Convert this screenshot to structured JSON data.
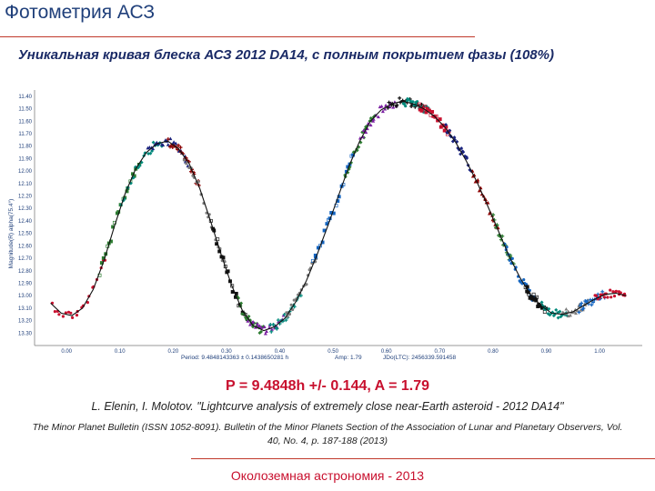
{
  "slide": {
    "title": "Фотометрия АСЗ",
    "subtitle": "Уникальная кривая блеска АСЗ 2012 DA14, с полным покрытием фазы (108%)",
    "result_formula": "P = 9.4848h +/- 0.144, A = 1.79",
    "citation": "L. Elenin, I. Molotov. \"Lightcurve analysis of extremely close near-Earth asteroid - 2012 DA14\"",
    "journal": "The Minor Planet Bulletin (ISSN 1052-8091). Bulletin of the Minor Planets Section of the Association of Lunar and Planetary Observers, Vol. 40, No. 4, p. 187-188 (2013)",
    "footer": "Околоземная астрономия - 2013"
  },
  "colors": {
    "title": "#1f3f7a",
    "subtitle": "#1a2a66",
    "accent_red": "#c8102e",
    "rule": "#c0392b",
    "curve": "#111111",
    "axis_text": "#1f3f7a"
  },
  "chart_data": {
    "type": "scatter",
    "ylabel": "Magnitude(R) alpha(75.4°)",
    "x_ticks": [
      "0.00",
      "0.10",
      "0.20",
      "0.30",
      "0.40",
      "0.50",
      "0.60",
      "0.70",
      "0.80",
      "0.90",
      "1.00"
    ],
    "y_ticks": [
      "11.40",
      "11.50",
      "11.60",
      "11.70",
      "11.80",
      "11.90",
      "12.00",
      "12.10",
      "12.20",
      "12.30",
      "12.40",
      "12.50",
      "12.60",
      "12.70",
      "12.80",
      "12.90",
      "13.00",
      "13.10",
      "13.20",
      "13.30"
    ],
    "xlim": [
      -0.06,
      1.08
    ],
    "ylim": [
      13.4,
      11.35
    ],
    "y_inverted": true,
    "footer_period": "Period: 9.4848143363 ± 0.1438650281 h",
    "footer_amp": "Amp: 1.79",
    "footer_jd": "JDo(LTC): 2456339.591458",
    "fit_curve": {
      "phase": [
        -0.03,
        -0.01,
        0.01,
        0.03,
        0.05,
        0.07,
        0.09,
        0.11,
        0.13,
        0.15,
        0.17,
        0.19,
        0.21,
        0.23,
        0.25,
        0.27,
        0.29,
        0.31,
        0.33,
        0.35,
        0.37,
        0.39,
        0.41,
        0.43,
        0.45,
        0.47,
        0.49,
        0.51,
        0.53,
        0.55,
        0.57,
        0.59,
        0.61,
        0.63,
        0.65,
        0.67,
        0.69,
        0.71,
        0.73,
        0.75,
        0.77,
        0.79,
        0.81,
        0.83,
        0.85,
        0.87,
        0.89,
        0.91,
        0.93,
        0.95,
        0.97,
        0.99,
        1.01,
        1.03,
        1.05
      ],
      "mag": [
        13.06,
        13.14,
        13.16,
        13.1,
        12.95,
        12.72,
        12.44,
        12.18,
        11.98,
        11.85,
        11.78,
        11.76,
        11.82,
        11.94,
        12.14,
        12.4,
        12.67,
        12.92,
        13.12,
        13.24,
        13.28,
        13.25,
        13.18,
        13.05,
        12.88,
        12.67,
        12.44,
        12.2,
        11.96,
        11.76,
        11.6,
        11.51,
        11.46,
        11.44,
        11.46,
        11.5,
        11.56,
        11.65,
        11.77,
        11.92,
        12.09,
        12.28,
        12.48,
        12.68,
        12.85,
        12.99,
        13.08,
        13.14,
        13.15,
        13.13,
        13.08,
        13.03,
        12.99,
        12.98,
        13.0
      ]
    },
    "series": [
      {
        "name": "",
        "color": "#c8102e",
        "phase_range": [
          -0.03,
          0.08
        ]
      },
      {
        "name": "",
        "color": "#2e7d32",
        "phase_range": [
          0.06,
          0.14
        ]
      },
      {
        "name": "",
        "color": "#00897b",
        "phase_range": [
          0.1,
          0.18
        ]
      },
      {
        "name": "",
        "color": "#1a237e",
        "phase_range": [
          0.15,
          0.23
        ]
      },
      {
        "name": "",
        "color": "#8b0000",
        "phase_range": [
          0.19,
          0.25
        ]
      },
      {
        "name": "",
        "color": "#7d7d7d",
        "phase_range": [
          0.22,
          0.3
        ]
      },
      {
        "name": "",
        "color": "#111111",
        "phase_range": [
          0.27,
          0.34
        ]
      },
      {
        "name": "",
        "color": "#2e7d32",
        "phase_range": [
          0.32,
          0.37
        ]
      },
      {
        "name": "",
        "color": "#7b1fa2",
        "phase_range": [
          0.34,
          0.41
        ]
      },
      {
        "name": "",
        "color": "#00897b",
        "phase_range": [
          0.38,
          0.44
        ]
      },
      {
        "name": "",
        "color": "#7d7d7d",
        "phase_range": [
          0.41,
          0.47
        ]
      },
      {
        "name": "",
        "color": "#1565c0",
        "phase_range": [
          0.46,
          0.54
        ]
      },
      {
        "name": "",
        "color": "#2e7d32",
        "phase_range": [
          0.52,
          0.58
        ]
      },
      {
        "name": "",
        "color": "#7b1fa2",
        "phase_range": [
          0.55,
          0.62
        ]
      },
      {
        "name": "",
        "color": "#111111",
        "phase_range": [
          0.6,
          0.67
        ]
      },
      {
        "name": "",
        "color": "#00897b",
        "phase_range": [
          0.63,
          0.68
        ]
      },
      {
        "name": "",
        "color": "#c8102e",
        "phase_range": [
          0.66,
          0.72
        ]
      },
      {
        "name": "",
        "color": "#1a237e",
        "phase_range": [
          0.71,
          0.76
        ]
      },
      {
        "name": "",
        "color": "#8b0000",
        "phase_range": [
          0.76,
          0.81
        ]
      },
      {
        "name": "",
        "color": "#2e7d32",
        "phase_range": [
          0.8,
          0.84
        ]
      },
      {
        "name": "",
        "color": "#1565c0",
        "phase_range": [
          0.82,
          0.88
        ]
      },
      {
        "name": "",
        "color": "#111111",
        "phase_range": [
          0.86,
          0.9
        ]
      },
      {
        "name": "",
        "color": "#00897b",
        "phase_range": [
          0.89,
          0.94
        ]
      },
      {
        "name": "",
        "color": "#7d7d7d",
        "phase_range": [
          0.93,
          0.98
        ]
      },
      {
        "name": "",
        "color": "#1565c0",
        "phase_range": [
          0.96,
          1.01
        ]
      },
      {
        "name": "",
        "color": "#c8102e",
        "phase_range": [
          0.99,
          1.05
        ]
      }
    ]
  }
}
